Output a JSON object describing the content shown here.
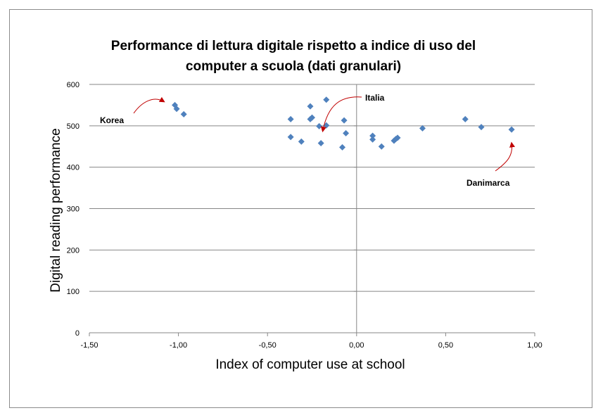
{
  "chart_data": {
    "type": "scatter",
    "title_lines": [
      "Performance di lettura digitale rispetto a indice di uso del",
      "computer a scuola (dati granulari)"
    ],
    "xlabel": "Index of computer use at school",
    "ylabel": "Digital reading performance",
    "xlim": [
      -1.5,
      1.0
    ],
    "ylim": [
      0,
      600
    ],
    "x_ticks": [
      -1.5,
      -1.0,
      -0.5,
      0.0,
      0.5,
      1.0
    ],
    "x_tick_labels": [
      "-1,50",
      "-1,00",
      "-0,50",
      "0,00",
      "0,50",
      "1,00"
    ],
    "y_ticks": [
      0,
      100,
      200,
      300,
      400,
      500,
      600
    ],
    "y_tick_labels": [
      "0",
      "100",
      "200",
      "300",
      "400",
      "500",
      "600"
    ],
    "grid": "horizontal",
    "marker_color": "#4f81bd",
    "arrow_color": "#c00000",
    "points": [
      {
        "x": -1.02,
        "y": 550
      },
      {
        "x": -1.01,
        "y": 541
      },
      {
        "x": -0.97,
        "y": 528
      },
      {
        "x": -0.37,
        "y": 516
      },
      {
        "x": -0.37,
        "y": 473
      },
      {
        "x": -0.31,
        "y": 462
      },
      {
        "x": -0.26,
        "y": 547
      },
      {
        "x": -0.26,
        "y": 516
      },
      {
        "x": -0.25,
        "y": 520
      },
      {
        "x": -0.21,
        "y": 499
      },
      {
        "x": -0.2,
        "y": 458
      },
      {
        "x": -0.17,
        "y": 563
      },
      {
        "x": -0.17,
        "y": 501
      },
      {
        "x": -0.08,
        "y": 448
      },
      {
        "x": -0.07,
        "y": 513
      },
      {
        "x": -0.06,
        "y": 482
      },
      {
        "x": 0.09,
        "y": 476
      },
      {
        "x": 0.09,
        "y": 467
      },
      {
        "x": 0.14,
        "y": 450
      },
      {
        "x": 0.21,
        "y": 464
      },
      {
        "x": 0.22,
        "y": 468
      },
      {
        "x": 0.23,
        "y": 471
      },
      {
        "x": 0.37,
        "y": 494
      },
      {
        "x": 0.61,
        "y": 516
      },
      {
        "x": 0.7,
        "y": 497
      },
      {
        "x": 0.87,
        "y": 491
      }
    ],
    "annotations": [
      {
        "label": "Korea",
        "point": {
          "x": -1.05,
          "y": 545
        }
      },
      {
        "label": "Italia",
        "point": {
          "x": -0.19,
          "y": 508
        }
      },
      {
        "label": "Danimarca",
        "point": {
          "x": 0.87,
          "y": 482
        }
      }
    ]
  }
}
